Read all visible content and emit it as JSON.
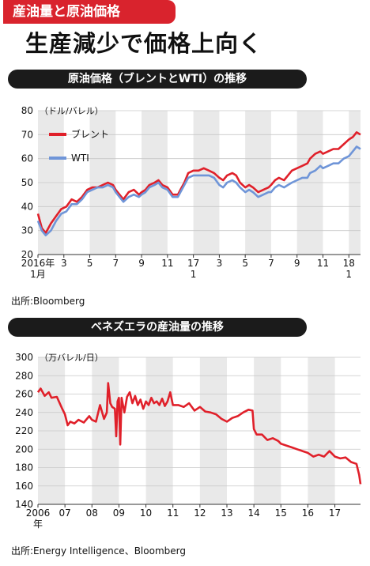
{
  "tag": "産油量と原油価格",
  "headline": "生産減少で価格上向く",
  "chart_data": [
    {
      "type": "line",
      "title": "原油価格（ブレントとWTI）の推移",
      "unit": "（ドル/バレル）",
      "ylim": [
        20,
        80
      ],
      "yticks": [
        20,
        30,
        40,
        50,
        60,
        70,
        80
      ],
      "xlim": [
        0,
        24.9
      ],
      "x_ticks": [
        {
          "x": 0,
          "label": "2016年",
          "sub": "1月"
        },
        {
          "x": 2,
          "label": "3"
        },
        {
          "x": 4,
          "label": "5"
        },
        {
          "x": 6,
          "label": "7"
        },
        {
          "x": 8,
          "label": "9"
        },
        {
          "x": 10,
          "label": "11"
        },
        {
          "x": 12,
          "label": "17",
          "sub": "1"
        },
        {
          "x": 14,
          "label": "3"
        },
        {
          "x": 16,
          "label": "5"
        },
        {
          "x": 18,
          "label": "7"
        },
        {
          "x": 20,
          "label": "9"
        },
        {
          "x": 22,
          "label": "11"
        },
        {
          "x": 24,
          "label": "18",
          "sub": "1"
        }
      ],
      "grid": "vertical stripes",
      "legend": "top-left",
      "series": [
        {
          "name": "ブレント",
          "color": "#e0202a",
          "points": [
            [
              0,
              37
            ],
            [
              0.3,
              31
            ],
            [
              0.6,
              29
            ],
            [
              1,
              33
            ],
            [
              1.4,
              36
            ],
            [
              1.8,
              39
            ],
            [
              2.2,
              40
            ],
            [
              2.6,
              43
            ],
            [
              3,
              42
            ],
            [
              3.4,
              44
            ],
            [
              3.8,
              47
            ],
            [
              4.2,
              48
            ],
            [
              4.6,
              48
            ],
            [
              5,
              49
            ],
            [
              5.4,
              50
            ],
            [
              5.8,
              49
            ],
            [
              6,
              47
            ],
            [
              6.3,
              45
            ],
            [
              6.6,
              43
            ],
            [
              7,
              46
            ],
            [
              7.4,
              47
            ],
            [
              7.8,
              45
            ],
            [
              8,
              46
            ],
            [
              8.3,
              47
            ],
            [
              8.6,
              49
            ],
            [
              9,
              50
            ],
            [
              9.3,
              51
            ],
            [
              9.6,
              49
            ],
            [
              10,
              48
            ],
            [
              10.4,
              45
            ],
            [
              10.8,
              45
            ],
            [
              11,
              47
            ],
            [
              11.3,
              50
            ],
            [
              11.6,
              54
            ],
            [
              12,
              55
            ],
            [
              12.4,
              55
            ],
            [
              12.8,
              56
            ],
            [
              13.2,
              55
            ],
            [
              13.6,
              54
            ],
            [
              14,
              52
            ],
            [
              14.3,
              51
            ],
            [
              14.6,
              53
            ],
            [
              15,
              54
            ],
            [
              15.3,
              53
            ],
            [
              15.6,
              50
            ],
            [
              16,
              48
            ],
            [
              16.3,
              49
            ],
            [
              16.6,
              48
            ],
            [
              17,
              46
            ],
            [
              17.4,
              47
            ],
            [
              17.8,
              48
            ],
            [
              18,
              49
            ],
            [
              18.3,
              51
            ],
            [
              18.6,
              52
            ],
            [
              19,
              51
            ],
            [
              19.3,
              53
            ],
            [
              19.6,
              55
            ],
            [
              20,
              56
            ],
            [
              20.4,
              57
            ],
            [
              20.8,
              58
            ],
            [
              21,
              60
            ],
            [
              21.4,
              62
            ],
            [
              21.8,
              63
            ],
            [
              22,
              62
            ],
            [
              22.4,
              63
            ],
            [
              22.8,
              64
            ],
            [
              23.2,
              64
            ],
            [
              23.6,
              66
            ],
            [
              24,
              68
            ],
            [
              24.3,
              69
            ],
            [
              24.6,
              71
            ],
            [
              24.9,
              70
            ]
          ]
        },
        {
          "name": "WTI",
          "color": "#6f95d8",
          "points": [
            [
              0,
              34
            ],
            [
              0.3,
              30
            ],
            [
              0.6,
              28
            ],
            [
              1,
              30
            ],
            [
              1.4,
              34
            ],
            [
              1.8,
              37
            ],
            [
              2.2,
              38
            ],
            [
              2.6,
              41
            ],
            [
              3,
              41
            ],
            [
              3.4,
              43
            ],
            [
              3.8,
              46
            ],
            [
              4.2,
              47
            ],
            [
              4.6,
              48
            ],
            [
              5,
              48
            ],
            [
              5.4,
              49
            ],
            [
              5.8,
              48
            ],
            [
              6,
              46
            ],
            [
              6.3,
              44
            ],
            [
              6.6,
              42
            ],
            [
              7,
              44
            ],
            [
              7.4,
              45
            ],
            [
              7.8,
              44
            ],
            [
              8,
              45
            ],
            [
              8.3,
              46
            ],
            [
              8.6,
              48
            ],
            [
              9,
              49
            ],
            [
              9.3,
              50
            ],
            [
              9.6,
              48
            ],
            [
              10,
              47
            ],
            [
              10.4,
              44
            ],
            [
              10.8,
              44
            ],
            [
              11,
              46
            ],
            [
              11.3,
              49
            ],
            [
              11.6,
              52
            ],
            [
              12,
              53
            ],
            [
              12.4,
              53
            ],
            [
              12.8,
              53
            ],
            [
              13.2,
              53
            ],
            [
              13.6,
              52
            ],
            [
              14,
              49
            ],
            [
              14.3,
              48
            ],
            [
              14.6,
              50
            ],
            [
              15,
              51
            ],
            [
              15.3,
              50
            ],
            [
              15.6,
              48
            ],
            [
              16,
              46
            ],
            [
              16.3,
              47
            ],
            [
              16.6,
              46
            ],
            [
              17,
              44
            ],
            [
              17.4,
              45
            ],
            [
              17.8,
              46
            ],
            [
              18,
              46
            ],
            [
              18.3,
              48
            ],
            [
              18.6,
              49
            ],
            [
              19,
              48
            ],
            [
              19.3,
              49
            ],
            [
              19.6,
              50
            ],
            [
              20,
              51
            ],
            [
              20.4,
              52
            ],
            [
              20.8,
              52
            ],
            [
              21,
              54
            ],
            [
              21.4,
              55
            ],
            [
              21.8,
              57
            ],
            [
              22,
              56
            ],
            [
              22.4,
              57
            ],
            [
              22.8,
              58
            ],
            [
              23.2,
              58
            ],
            [
              23.6,
              60
            ],
            [
              24,
              61
            ],
            [
              24.3,
              63
            ],
            [
              24.6,
              65
            ],
            [
              24.9,
              64
            ]
          ]
        }
      ],
      "source": "出所:Bloomberg"
    },
    {
      "type": "line",
      "title": "ベネズエラの産油量の推移",
      "unit": "（万バレル/日）",
      "ylim": [
        140,
        300
      ],
      "yticks": [
        140,
        160,
        180,
        200,
        220,
        240,
        260,
        280,
        300
      ],
      "xlim": [
        2006,
        2017.95
      ],
      "x_ticks": [
        {
          "x": 2006,
          "label": "2006",
          "sub": "年"
        },
        {
          "x": 2007,
          "label": "07"
        },
        {
          "x": 2008,
          "label": "08"
        },
        {
          "x": 2009,
          "label": "09"
        },
        {
          "x": 2010,
          "label": "10"
        },
        {
          "x": 2011,
          "label": "11"
        },
        {
          "x": 2012,
          "label": "12"
        },
        {
          "x": 2013,
          "label": "13"
        },
        {
          "x": 2014,
          "label": "14"
        },
        {
          "x": 2015,
          "label": "15"
        },
        {
          "x": 2016,
          "label": "16"
        },
        {
          "x": 2017,
          "label": "17"
        }
      ],
      "grid": "vertical stripes",
      "series": [
        {
          "name": "",
          "color": "#e0202a",
          "points": [
            [
              2006,
              262
            ],
            [
              2006.1,
              266
            ],
            [
              2006.25,
              258
            ],
            [
              2006.4,
              262
            ],
            [
              2006.5,
              256
            ],
            [
              2006.7,
              257
            ],
            [
              2006.9,
              244
            ],
            [
              2007,
              238
            ],
            [
              2007.1,
              226
            ],
            [
              2007.2,
              230
            ],
            [
              2007.35,
              228
            ],
            [
              2007.5,
              232
            ],
            [
              2007.7,
              229
            ],
            [
              2007.9,
              236
            ],
            [
              2008,
              232
            ],
            [
              2008.15,
              230
            ],
            [
              2008.3,
              248
            ],
            [
              2008.45,
              233
            ],
            [
              2008.55,
              240
            ],
            [
              2008.6,
              272
            ],
            [
              2008.68,
              250
            ],
            [
              2008.75,
              246
            ],
            [
              2008.85,
              244
            ],
            [
              2008.9,
              214
            ],
            [
              2008.95,
              252
            ],
            [
              2009,
              256
            ],
            [
              2009.05,
              205
            ],
            [
              2009.1,
              256
            ],
            [
              2009.2,
              240
            ],
            [
              2009.3,
              257
            ],
            [
              2009.4,
              262
            ],
            [
              2009.5,
              250
            ],
            [
              2009.6,
              258
            ],
            [
              2009.7,
              248
            ],
            [
              2009.8,
              254
            ],
            [
              2009.9,
              244
            ],
            [
              2010,
              252
            ],
            [
              2010.1,
              248
            ],
            [
              2010.2,
              256
            ],
            [
              2010.3,
              250
            ],
            [
              2010.4,
              252
            ],
            [
              2010.5,
              248
            ],
            [
              2010.6,
              255
            ],
            [
              2010.7,
              247
            ],
            [
              2010.8,
              252
            ],
            [
              2010.9,
              262
            ],
            [
              2011,
              248
            ],
            [
              2011.2,
              248
            ],
            [
              2011.4,
              246
            ],
            [
              2011.6,
              250
            ],
            [
              2011.8,
              242
            ],
            [
              2012,
              246
            ],
            [
              2012.2,
              241
            ],
            [
              2012.4,
              240
            ],
            [
              2012.6,
              238
            ],
            [
              2012.8,
              233
            ],
            [
              2013,
              230
            ],
            [
              2013.2,
              234
            ],
            [
              2013.4,
              236
            ],
            [
              2013.6,
              240
            ],
            [
              2013.8,
              243
            ],
            [
              2013.95,
              242
            ],
            [
              2014,
              222
            ],
            [
              2014.1,
              216
            ],
            [
              2014.3,
              216
            ],
            [
              2014.5,
              210
            ],
            [
              2014.7,
              212
            ],
            [
              2014.9,
              209
            ],
            [
              2015,
              206
            ],
            [
              2015.2,
              204
            ],
            [
              2015.4,
              202
            ],
            [
              2015.6,
              200
            ],
            [
              2015.8,
              198
            ],
            [
              2016,
              196
            ],
            [
              2016.2,
              192
            ],
            [
              2016.4,
              194
            ],
            [
              2016.6,
              192
            ],
            [
              2016.8,
              198
            ],
            [
              2017,
              192
            ],
            [
              2017.2,
              190
            ],
            [
              2017.4,
              191
            ],
            [
              2017.6,
              186
            ],
            [
              2017.8,
              184
            ],
            [
              2017.9,
              172
            ],
            [
              2017.95,
              162
            ]
          ]
        }
      ],
      "source": "出所:Energy Intelligence、Bloomberg"
    }
  ]
}
